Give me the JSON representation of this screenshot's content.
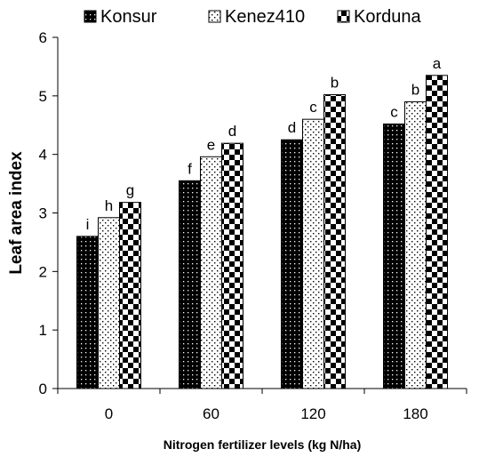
{
  "chart_data": {
    "type": "bar",
    "title": "",
    "xlabel": "Nitrogen fertilizer levels (kg N/ha)",
    "ylabel": "Leaf area index",
    "ylim": [
      0,
      6
    ],
    "yticks": [
      "0",
      "1",
      "2",
      "3",
      "4",
      "5",
      "6"
    ],
    "categories": [
      "0",
      "60",
      "120",
      "180"
    ],
    "grid": false,
    "legend_position": "top",
    "series": [
      {
        "name": "Konsur",
        "values": [
          2.6,
          3.55,
          4.25,
          4.52
        ],
        "labels": [
          "i",
          "f",
          "d",
          "c"
        ],
        "pattern": "dense-dots"
      },
      {
        "name": "Kenez410",
        "values": [
          2.92,
          3.96,
          4.6,
          4.9
        ],
        "labels": [
          "h",
          "e",
          "c",
          "b"
        ],
        "pattern": "sparse-dots"
      },
      {
        "name": "Korduna",
        "values": [
          3.18,
          4.19,
          5.02,
          5.35
        ],
        "labels": [
          "g",
          "d",
          "b",
          "a"
        ],
        "pattern": "checker"
      }
    ]
  }
}
